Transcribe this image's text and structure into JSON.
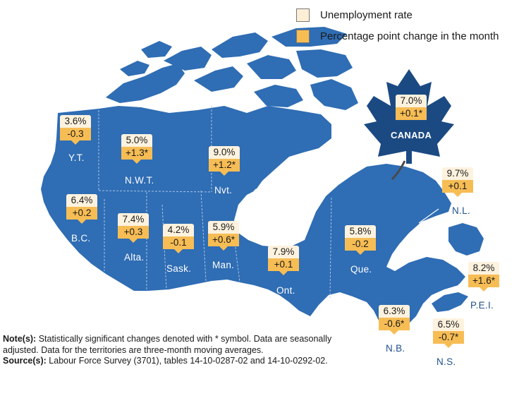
{
  "legend": {
    "rate_label": "Unemployment rate",
    "change_label": "Percentage point change in the month"
  },
  "colors": {
    "land": "#2f6db4",
    "water": "#ffffff",
    "rate_box": "#fdf2de",
    "change_box": "#f7bd55",
    "leaf": "#1b4a83"
  },
  "canada": {
    "label": "CANADA",
    "rate": "7.0%",
    "change": "+0.1*"
  },
  "regions": [
    {
      "key": "yt",
      "label": "Y.T.",
      "rate": "3.6%",
      "change": "-0.3"
    },
    {
      "key": "nwt",
      "label": "N.W.T.",
      "rate": "5.0%",
      "change": "+1.3*"
    },
    {
      "key": "nvt",
      "label": "Nvt.",
      "rate": "9.0%",
      "change": "+1.2*"
    },
    {
      "key": "bc",
      "label": "B.C.",
      "rate": "6.4%",
      "change": "+0.2"
    },
    {
      "key": "ab",
      "label": "Alta.",
      "rate": "7.4%",
      "change": "+0.3"
    },
    {
      "key": "sk",
      "label": "Sask.",
      "rate": "4.2%",
      "change": "-0.1"
    },
    {
      "key": "mb",
      "label": "Man.",
      "rate": "5.9%",
      "change": "+0.6*"
    },
    {
      "key": "on",
      "label": "Ont.",
      "rate": "7.9%",
      "change": "+0.1"
    },
    {
      "key": "qc",
      "label": "Que.",
      "rate": "5.8%",
      "change": "-0.2"
    },
    {
      "key": "nl",
      "label": "N.L.",
      "rate": "9.7%",
      "change": "+0.1"
    },
    {
      "key": "pei",
      "label": "P.E.I.",
      "rate": "8.2%",
      "change": "+1.6*"
    },
    {
      "key": "nb",
      "label": "N.B.",
      "rate": "6.3%",
      "change": "-0.6*"
    },
    {
      "key": "ns",
      "label": "N.S.",
      "rate": "6.5%",
      "change": "-0.7*"
    }
  ],
  "notes": {
    "note_heading": "Note(s):",
    "note_text": " Statistically significant changes denoted with * symbol. Data are seasonally adjusted. Data for the territories are three-month moving averages.",
    "source_heading": "Source(s):",
    "source_text": " Labour Force Survey (3701), tables 14-10-0287-02 and 14-10-0292-02."
  }
}
